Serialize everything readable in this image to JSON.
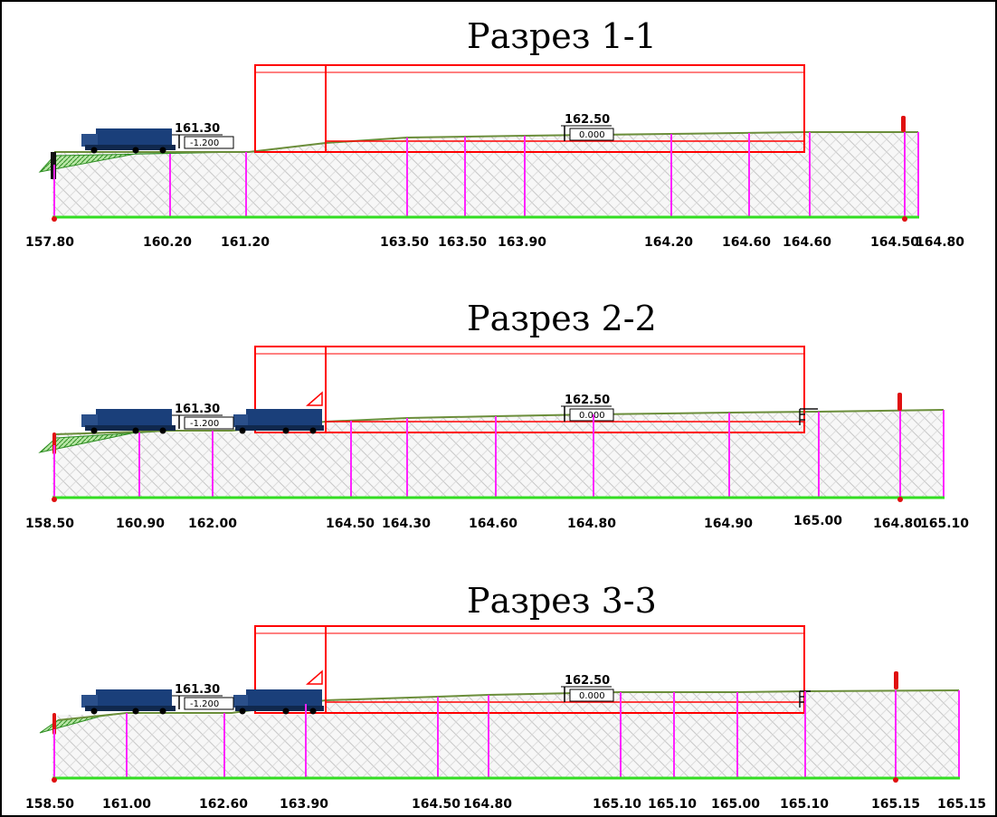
{
  "colors": {
    "frame": "#000000",
    "building": "#ff0000",
    "ground_line": "#6b8e3a",
    "baseline": "#33dd22",
    "verticals": "#ff22ff",
    "truck": "#1a3f7a",
    "slope_fill": "#4caf3a"
  },
  "sections": [
    {
      "title": "Разрез 1-1",
      "truck_mark": "161.30",
      "truck_rel": "-1.200",
      "floor_mark": "162.50",
      "floor_rel": "0.000",
      "elevations": [
        "157.80",
        "160.20",
        "161.20",
        "163.50",
        "163.50",
        "163.90",
        "164.20",
        "164.60",
        "164.60",
        "164.50",
        "164.80"
      ]
    },
    {
      "title": "Разрез 2-2",
      "truck_mark": "161.30",
      "truck_rel": "-1.200",
      "floor_mark": "162.50",
      "floor_rel": "0.000",
      "elevations": [
        "158.50",
        "160.90",
        "162.00",
        "164.50",
        "164.30",
        "164.60",
        "164.80",
        "164.90",
        "165.00",
        "164.80",
        "165.10"
      ]
    },
    {
      "title": "Разрез 3-3",
      "truck_mark": "161.30",
      "truck_rel": "-1.200",
      "floor_mark": "162.50",
      "floor_rel": "0.000",
      "elevations": [
        "158.50",
        "161.00",
        "162.60",
        "163.90",
        "164.50",
        "164.80",
        "165.10",
        "165.10",
        "165.00",
        "165.10",
        "165.15",
        "165.15"
      ]
    }
  ]
}
